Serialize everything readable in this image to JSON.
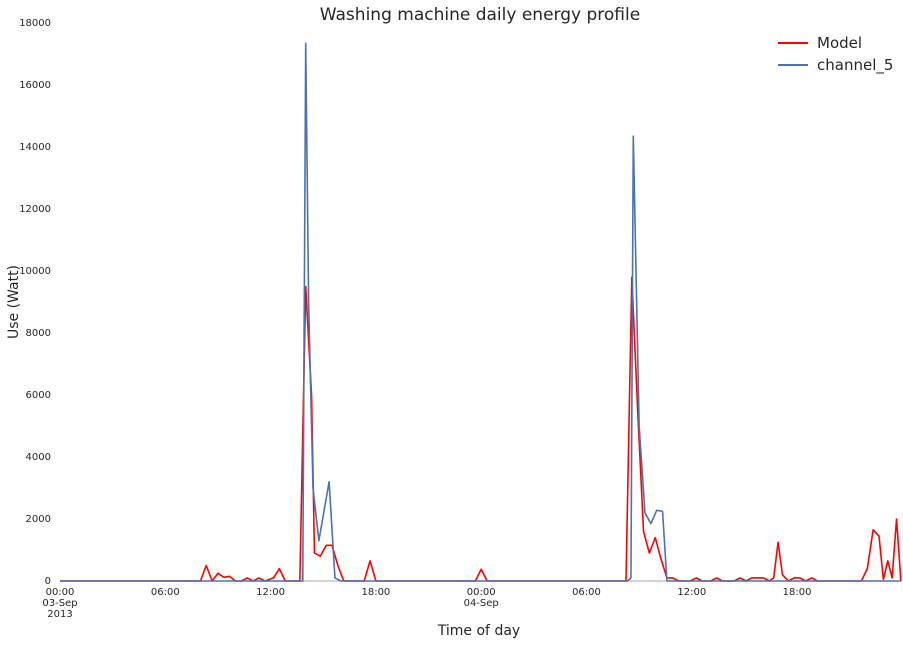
{
  "chart_data": {
    "type": "line",
    "title": "Washing machine daily energy profile",
    "xlabel": "Time of day",
    "ylabel": "Use (Watt)",
    "xlim": [
      "2013-09-03 00:00",
      "2013-09-04 23:45"
    ],
    "ylim": [
      0,
      18000
    ],
    "yticks": [
      0,
      2000,
      4000,
      6000,
      8000,
      10000,
      12000,
      14000,
      16000,
      18000
    ],
    "xticks": [
      {
        "time": "2013-09-03 00:00",
        "lines": [
          "00:00",
          "03-Sep",
          "2013"
        ]
      },
      {
        "time": "2013-09-03 06:00",
        "lines": [
          "06:00"
        ]
      },
      {
        "time": "2013-09-03 12:00",
        "lines": [
          "12:00"
        ]
      },
      {
        "time": "2013-09-03 18:00",
        "lines": [
          "18:00"
        ]
      },
      {
        "time": "2013-09-04 00:00",
        "lines": [
          "00:00",
          "04-Sep"
        ]
      },
      {
        "time": "2013-09-04 06:00",
        "lines": [
          "06:00"
        ]
      },
      {
        "time": "2013-09-04 12:00",
        "lines": [
          "12:00"
        ]
      },
      {
        "time": "2013-09-04 18:00",
        "lines": [
          "18:00"
        ]
      }
    ],
    "grid": false,
    "legend_position": "top-right",
    "series": [
      {
        "name": "Model",
        "color": "#ff0000",
        "points": [
          [
            "2013-09-03 00:00",
            0
          ],
          [
            "2013-09-03 08:00",
            0
          ],
          [
            "2013-09-03 08:20",
            500
          ],
          [
            "2013-09-03 08:40",
            0
          ],
          [
            "2013-09-03 09:00",
            250
          ],
          [
            "2013-09-03 09:20",
            120
          ],
          [
            "2013-09-03 09:40",
            150
          ],
          [
            "2013-09-03 10:00",
            0
          ],
          [
            "2013-09-03 10:20",
            0
          ],
          [
            "2013-09-03 10:40",
            100
          ],
          [
            "2013-09-03 11:00",
            0
          ],
          [
            "2013-09-03 11:20",
            100
          ],
          [
            "2013-09-03 11:40",
            0
          ],
          [
            "2013-09-03 12:10",
            100
          ],
          [
            "2013-09-03 12:30",
            400
          ],
          [
            "2013-09-03 12:50",
            0
          ],
          [
            "2013-09-03 13:40",
            0
          ],
          [
            "2013-09-03 14:00",
            9500
          ],
          [
            "2013-09-03 14:20",
            6000
          ],
          [
            "2013-09-03 14:30",
            900
          ],
          [
            "2013-09-03 14:50",
            800
          ],
          [
            "2013-09-03 15:10",
            1150
          ],
          [
            "2013-09-03 15:30",
            1150
          ],
          [
            "2013-09-03 15:50",
            500
          ],
          [
            "2013-09-03 16:10",
            0
          ],
          [
            "2013-09-03 17:20",
            0
          ],
          [
            "2013-09-03 17:40",
            650
          ],
          [
            "2013-09-03 18:00",
            0
          ],
          [
            "2013-09-03 23:40",
            0
          ],
          [
            "2013-09-04 00:00",
            380
          ],
          [
            "2013-09-04 00:20",
            0
          ],
          [
            "2013-09-04 08:15",
            0
          ],
          [
            "2013-09-04 08:35",
            9800
          ],
          [
            "2013-09-04 08:55",
            5500
          ],
          [
            "2013-09-04 09:15",
            1600
          ],
          [
            "2013-09-04 09:35",
            900
          ],
          [
            "2013-09-04 09:55",
            1400
          ],
          [
            "2013-09-04 10:15",
            700
          ],
          [
            "2013-09-04 10:35",
            100
          ],
          [
            "2013-09-04 10:55",
            100
          ],
          [
            "2013-09-04 11:15",
            0
          ],
          [
            "2013-09-04 11:55",
            0
          ],
          [
            "2013-09-04 12:15",
            100
          ],
          [
            "2013-09-04 12:35",
            0
          ],
          [
            "2013-09-04 13:05",
            0
          ],
          [
            "2013-09-04 13:25",
            100
          ],
          [
            "2013-09-04 13:45",
            0
          ],
          [
            "2013-09-04 14:25",
            0
          ],
          [
            "2013-09-04 14:45",
            100
          ],
          [
            "2013-09-04 15:05",
            0
          ],
          [
            "2013-09-04 15:25",
            100
          ],
          [
            "2013-09-04 15:45",
            100
          ],
          [
            "2013-09-04 16:05",
            100
          ],
          [
            "2013-09-04 16:25",
            0
          ],
          [
            "2013-09-04 16:40",
            100
          ],
          [
            "2013-09-04 16:55",
            1250
          ],
          [
            "2013-09-04 17:10",
            200
          ],
          [
            "2013-09-04 17:30",
            0
          ],
          [
            "2013-09-04 17:50",
            100
          ],
          [
            "2013-09-04 18:10",
            100
          ],
          [
            "2013-09-04 18:30",
            0
          ],
          [
            "2013-09-04 18:50",
            100
          ],
          [
            "2013-09-04 19:10",
            0
          ],
          [
            "2013-09-04 21:40",
            0
          ],
          [
            "2013-09-04 22:00",
            400
          ],
          [
            "2013-09-04 22:20",
            1650
          ],
          [
            "2013-09-04 22:40",
            1450
          ],
          [
            "2013-09-04 22:55",
            50
          ],
          [
            "2013-09-04 23:10",
            650
          ],
          [
            "2013-09-04 23:25",
            100
          ],
          [
            "2013-09-04 23:40",
            2000
          ],
          [
            "2013-09-04 23:55",
            0
          ]
        ]
      },
      {
        "name": "channel_5",
        "color": "#4c72b0",
        "points": [
          [
            "2013-09-03 00:00",
            0
          ],
          [
            "2013-09-03 13:50",
            0
          ],
          [
            "2013-09-03 14:00",
            17350
          ],
          [
            "2013-09-03 14:10",
            9000
          ],
          [
            "2013-09-03 14:25",
            3000
          ],
          [
            "2013-09-03 14:45",
            1300
          ],
          [
            "2013-09-03 15:20",
            3200
          ],
          [
            "2013-09-03 15:40",
            100
          ],
          [
            "2013-09-03 16:00",
            0
          ],
          [
            "2013-09-04 08:20",
            0
          ],
          [
            "2013-09-04 08:32",
            100
          ],
          [
            "2013-09-04 08:40",
            14350
          ],
          [
            "2013-09-04 09:00",
            5000
          ],
          [
            "2013-09-04 09:20",
            2200
          ],
          [
            "2013-09-04 09:40",
            1850
          ],
          [
            "2013-09-04 10:00",
            2280
          ],
          [
            "2013-09-04 10:20",
            2250
          ],
          [
            "2013-09-04 10:35",
            0
          ],
          [
            "2013-09-04 23:55",
            0
          ]
        ]
      }
    ]
  }
}
